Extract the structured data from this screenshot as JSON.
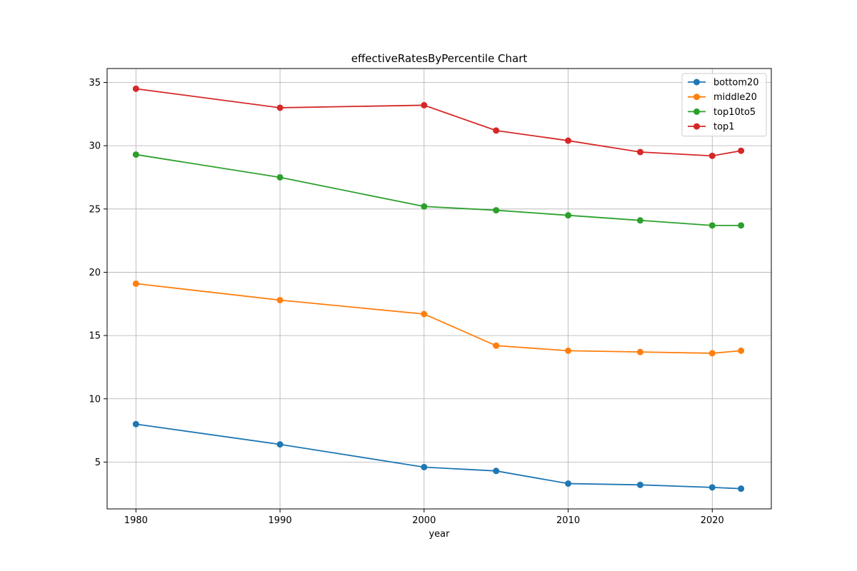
{
  "chart_data": {
    "type": "line",
    "title": "effectiveRatesByPercentile Chart",
    "xlabel": "year",
    "ylabel": "",
    "x": [
      1980,
      1990,
      2000,
      2005,
      2010,
      2015,
      2020,
      2022
    ],
    "xlim": [
      1978,
      2024.1
    ],
    "ylim": [
      1.3,
      36.1
    ],
    "xticks": [
      1980,
      1990,
      2000,
      2010,
      2020
    ],
    "yticks": [
      5,
      10,
      15,
      20,
      25,
      30,
      35
    ],
    "grid": true,
    "legend_position": "top-right",
    "series": [
      {
        "name": "bottom20",
        "color": "#1f77b4",
        "values": [
          8.0,
          6.4,
          4.6,
          4.3,
          3.3,
          3.2,
          3.0,
          2.9
        ]
      },
      {
        "name": "middle20",
        "color": "#ff7f0e",
        "values": [
          19.1,
          17.8,
          16.7,
          14.2,
          13.8,
          13.7,
          13.6,
          13.8
        ]
      },
      {
        "name": "top10to5",
        "color": "#2ca02c",
        "values": [
          29.3,
          27.5,
          25.2,
          24.9,
          24.5,
          24.1,
          23.7,
          23.7
        ]
      },
      {
        "name": "top1",
        "color": "#d62728",
        "values": [
          34.5,
          33.0,
          33.2,
          31.2,
          30.4,
          29.5,
          29.2,
          29.6
        ]
      }
    ]
  }
}
